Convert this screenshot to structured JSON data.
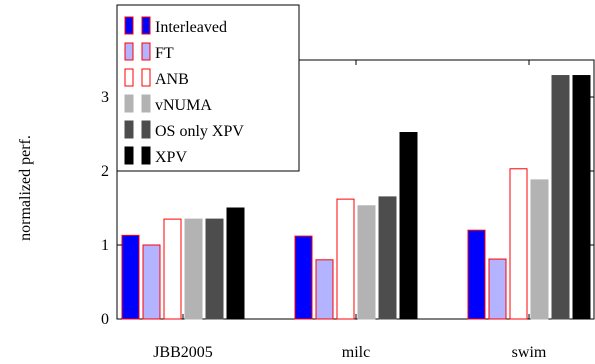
{
  "chart_data": {
    "type": "bar",
    "ylabel": "normalized perf.",
    "xlabel": "",
    "title": "",
    "categories": [
      "JBB2005",
      "milc",
      "swim"
    ],
    "ylim": [
      0,
      3.5
    ],
    "yticks": [
      0,
      1,
      2,
      3
    ],
    "grid": false,
    "legend_position": "top-left",
    "series": [
      {
        "name": "Interleaved",
        "values": [
          1.13,
          1.12,
          1.2
        ],
        "fill": "#0000ff",
        "stroke": "#ff0000"
      },
      {
        "name": "FT",
        "values": [
          1.0,
          0.8,
          0.81
        ],
        "fill": "#b3b3ff",
        "stroke": "#ff0000"
      },
      {
        "name": "ANB",
        "values": [
          1.35,
          1.62,
          2.03
        ],
        "fill": "#ffffff",
        "stroke": "#ff0000"
      },
      {
        "name": "vNUMA",
        "values": [
          1.35,
          1.53,
          1.88
        ],
        "fill": "#b3b3b3",
        "stroke": "#b3b3b3"
      },
      {
        "name": "OS only XPV",
        "values": [
          1.35,
          1.65,
          3.29
        ],
        "fill": "#4d4d4d",
        "stroke": "#4d4d4d"
      },
      {
        "name": "XPV",
        "values": [
          1.5,
          2.52,
          3.29
        ],
        "fill": "#000000",
        "stroke": "#000000"
      }
    ]
  }
}
